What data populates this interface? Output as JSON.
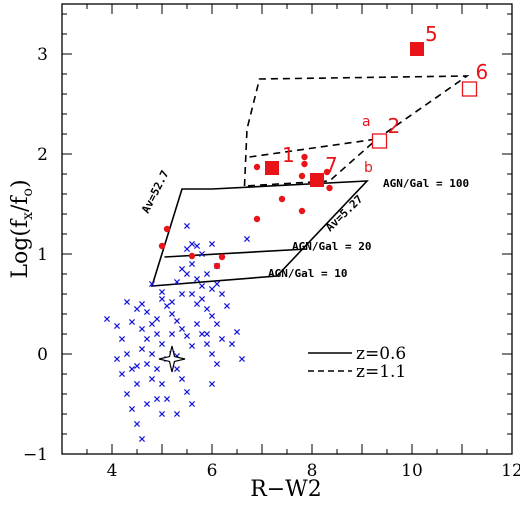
{
  "chart_data": {
    "type": "scatter",
    "xlabel": "R−W2",
    "ylabel_main": "Log(f",
    "ylabel_sub1": "x",
    "ylabel_mid": "/f",
    "ylabel_sub2": "o",
    "ylabel_end": ")",
    "xlim": [
      3,
      12
    ],
    "ylim": [
      -1,
      3.5
    ],
    "x_ticks": [
      4,
      6,
      8,
      10,
      12
    ],
    "y_ticks": [
      -1,
      0,
      1,
      2,
      3
    ],
    "x_tick_labels": [
      "4",
      "6",
      "8",
      "10",
      "12"
    ],
    "y_tick_labels": [
      "−1",
      "0",
      "1",
      "2",
      "3"
    ],
    "colors": {
      "red": "#e8141a",
      "blue": "#1515d6",
      "black": "#000000"
    },
    "blue_crosses": [
      [
        3.9,
        0.35
      ],
      [
        4.1,
        0.28
      ],
      [
        4.2,
        0.15
      ],
      [
        4.3,
        0.0
      ],
      [
        4.4,
        -0.15
      ],
      [
        4.5,
        -0.3
      ],
      [
        4.1,
        -0.05
      ],
      [
        4.2,
        -0.2
      ],
      [
        4.3,
        -0.4
      ],
      [
        4.4,
        -0.55
      ],
      [
        4.5,
        -0.7
      ],
      [
        4.6,
        -0.85
      ],
      [
        4.5,
        0.45
      ],
      [
        4.6,
        0.5
      ],
      [
        4.7,
        0.42
      ],
      [
        4.8,
        0.3
      ],
      [
        4.9,
        0.2
      ],
      [
        5.0,
        0.1
      ],
      [
        4.6,
        0.05
      ],
      [
        4.7,
        -0.1
      ],
      [
        4.8,
        -0.25
      ],
      [
        4.9,
        -0.45
      ],
      [
        5.0,
        -0.6
      ],
      [
        5.1,
        -0.05
      ],
      [
        4.6,
        0.25
      ],
      [
        4.7,
        0.15
      ],
      [
        4.8,
        0.0
      ],
      [
        4.9,
        -0.15
      ],
      [
        5.0,
        -0.3
      ],
      [
        5.1,
        -0.45
      ],
      [
        5.0,
        0.55
      ],
      [
        5.1,
        0.48
      ],
      [
        5.2,
        0.4
      ],
      [
        5.3,
        0.33
      ],
      [
        5.4,
        0.25
      ],
      [
        5.5,
        0.18
      ],
      [
        5.2,
        0.0
      ],
      [
        5.3,
        -0.15
      ],
      [
        5.4,
        -0.25
      ],
      [
        5.5,
        -0.38
      ],
      [
        5.6,
        -0.5
      ],
      [
        5.3,
        -0.6
      ],
      [
        5.6,
        0.6
      ],
      [
        5.7,
        0.5
      ],
      [
        5.8,
        0.55
      ],
      [
        5.9,
        0.45
      ],
      [
        6.0,
        0.38
      ],
      [
        6.1,
        0.3
      ],
      [
        5.7,
        0.3
      ],
      [
        5.8,
        0.2
      ],
      [
        5.9,
        0.1
      ],
      [
        6.0,
        0.0
      ],
      [
        6.1,
        -0.1
      ],
      [
        6.2,
        0.15
      ],
      [
        5.4,
        0.85
      ],
      [
        5.5,
        0.8
      ],
      [
        5.6,
        0.9
      ],
      [
        5.7,
        0.75
      ],
      [
        5.8,
        0.68
      ],
      [
        5.9,
        0.8
      ],
      [
        6.0,
        0.65
      ],
      [
        6.1,
        0.7
      ],
      [
        6.2,
        0.6
      ],
      [
        5.5,
        1.05
      ],
      [
        5.6,
        1.1
      ],
      [
        5.5,
        1.28
      ],
      [
        6.4,
        0.1
      ],
      [
        6.5,
        0.22
      ],
      [
        6.6,
        -0.05
      ],
      [
        6.0,
        -0.3
      ],
      [
        5.9,
        0.2
      ],
      [
        5.2,
        0.2
      ],
      [
        4.4,
        0.32
      ],
      [
        4.8,
        0.7
      ],
      [
        5.0,
        0.62
      ],
      [
        5.3,
        0.72
      ],
      [
        5.4,
        0.6
      ],
      [
        5.7,
        1.08
      ],
      [
        6.7,
        1.15
      ],
      [
        6.0,
        1.1
      ],
      [
        5.8,
        1.0
      ],
      [
        4.3,
        0.52
      ],
      [
        4.5,
        -0.12
      ],
      [
        4.7,
        -0.5
      ],
      [
        5.3,
        -0.02
      ],
      [
        5.6,
        0.08
      ],
      [
        4.9,
        0.35
      ],
      [
        5.2,
        0.52
      ],
      [
        6.1,
        0.88
      ],
      [
        6.3,
        0.48
      ]
    ],
    "red_dots": [
      [
        5.1,
        1.25
      ],
      [
        5.0,
        1.08
      ],
      [
        5.6,
        0.98
      ],
      [
        6.1,
        0.88
      ],
      [
        6.2,
        0.97
      ],
      [
        6.9,
        1.35
      ],
      [
        7.8,
        1.43
      ],
      [
        6.9,
        1.87
      ],
      [
        7.85,
        1.97
      ],
      [
        7.85,
        1.9
      ],
      [
        8.3,
        1.82
      ],
      [
        8.35,
        1.66
      ],
      [
        7.4,
        1.55
      ],
      [
        7.8,
        1.78
      ]
    ],
    "filled_squares": [
      {
        "label": "1",
        "x": 7.2,
        "y": 1.86
      },
      {
        "label": "7",
        "x": 8.1,
        "y": 1.74
      },
      {
        "label": "5",
        "x": 10.1,
        "y": 3.05
      }
    ],
    "open_squares": [
      {
        "label": "2",
        "x": 9.35,
        "y": 2.13
      },
      {
        "label": "6",
        "x": 11.15,
        "y": 2.65
      }
    ],
    "small_labels": [
      "a",
      "b"
    ],
    "star": {
      "x": 5.2,
      "y": -0.05
    },
    "grid_z06": {
      "outline": [
        [
          4.8,
          0.68
        ],
        [
          5.4,
          1.65
        ],
        [
          6.0,
          1.65
        ],
        [
          9.1,
          1.73
        ],
        [
          7.3,
          0.78
        ]
      ],
      "mid_line": [
        [
          5.05,
          0.97
        ],
        [
          7.9,
          1.05
        ]
      ],
      "label_top": "AGN/Gal = 100",
      "label_mid": "AGN/Gal = 20",
      "label_bot": "AGN/Gal = 10",
      "av_left": "Av=52.7",
      "av_right": "Av=5.27"
    },
    "grid_z11": {
      "outline": [
        [
          6.65,
          1.68
        ],
        [
          6.7,
          2.25
        ],
        [
          6.95,
          2.75
        ],
        [
          11.1,
          2.78
        ],
        [
          9.3,
          2.15
        ],
        [
          8.35,
          1.73
        ]
      ],
      "mid_line": [
        [
          6.75,
          1.97
        ],
        [
          9.3,
          2.15
        ]
      ]
    },
    "legend": [
      {
        "label": "z=0.6",
        "style": "solid"
      },
      {
        "label": "z=1.1",
        "style": "dashed"
      }
    ]
  }
}
